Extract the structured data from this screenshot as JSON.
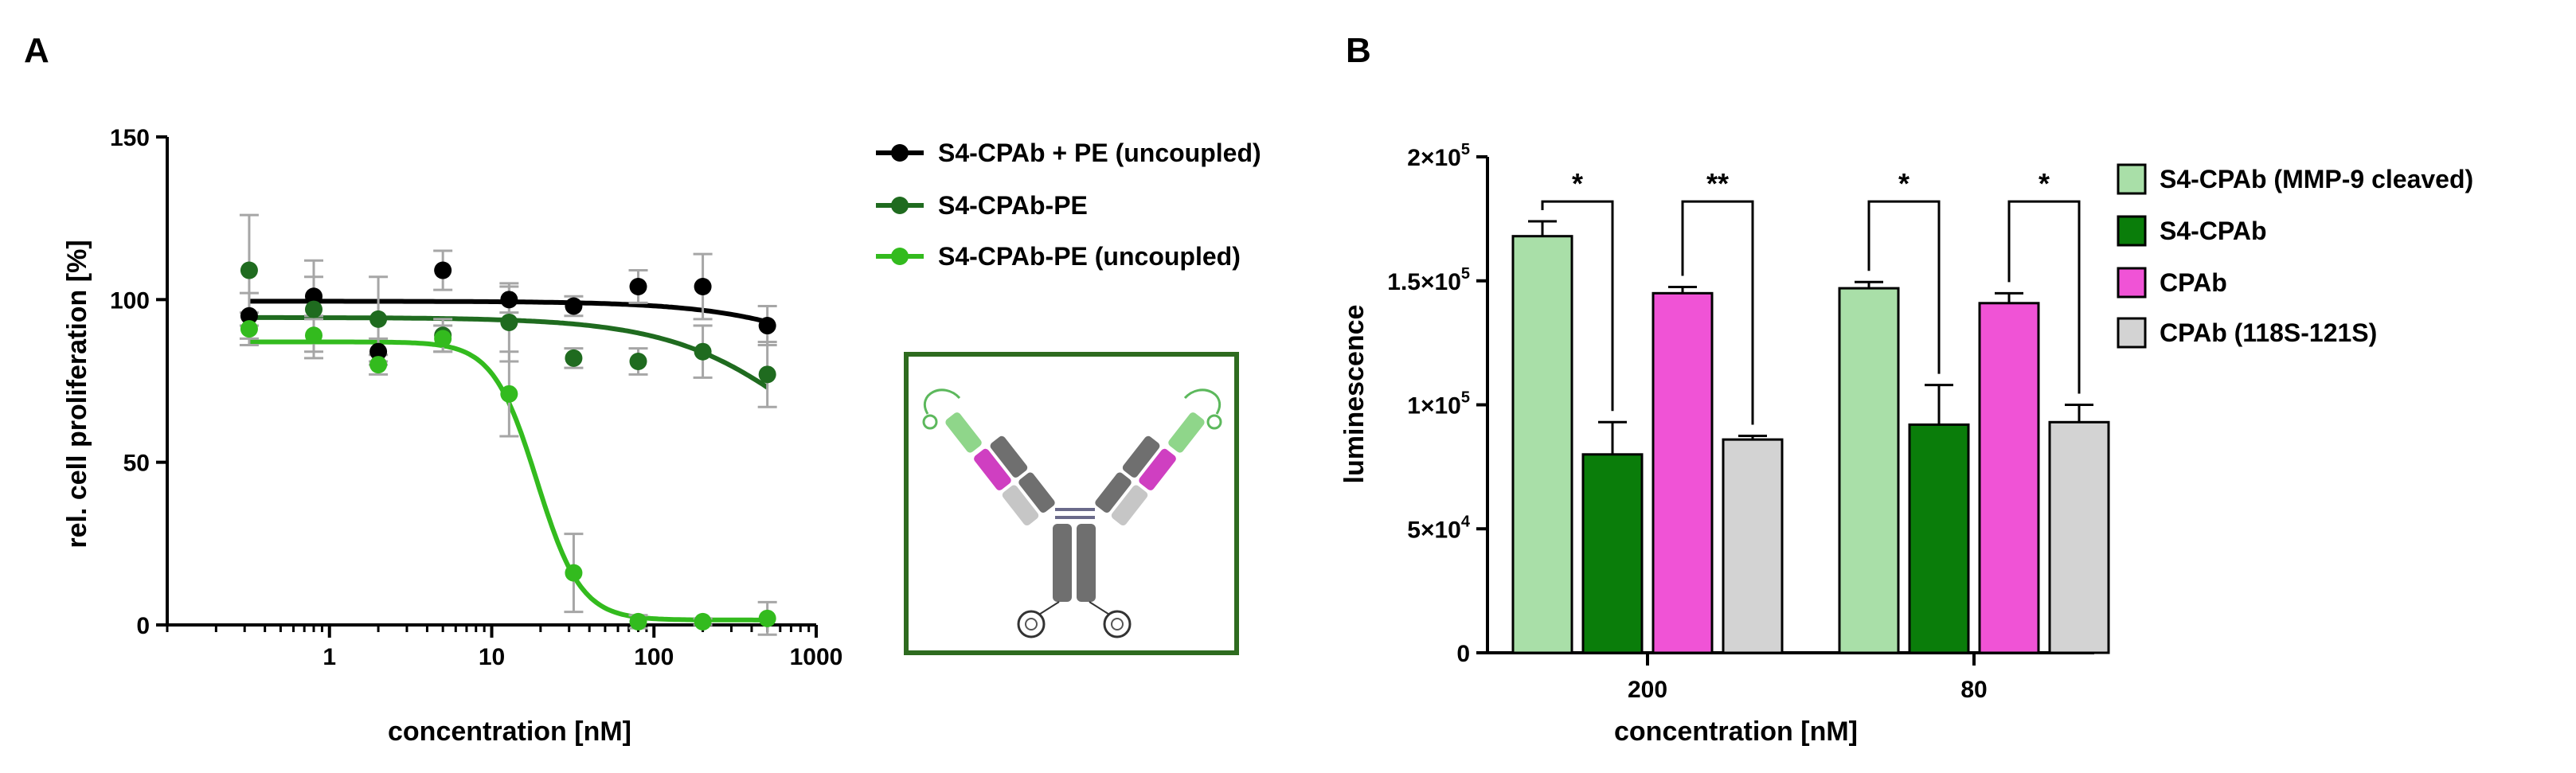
{
  "panels": {
    "a_label": "A",
    "b_label": "B"
  },
  "chart_data": [
    {
      "type": "scatter",
      "panel": "A",
      "xlabel": "concentration [nM]",
      "ylabel": "rel. cell proliferation [%]",
      "xscale": "log",
      "xlim": [
        0.1,
        1000
      ],
      "ylim": [
        0,
        150
      ],
      "xticks": [
        1,
        10,
        100,
        1000
      ],
      "xtick_labels": [
        "1",
        "10",
        "100",
        "1000"
      ],
      "yticks": [
        0,
        50,
        100,
        150
      ],
      "ytick_labels": [
        "0",
        "50",
        "100",
        "150"
      ],
      "legend_position": "top-right",
      "grid": false,
      "series": [
        {
          "name": "S4-CPAb + PE (uncoupled)",
          "color": "#000000",
          "x": [
            0.32,
            0.8,
            2,
            5,
            12.8,
            32,
            80,
            200,
            500
          ],
          "y": [
            95,
            101,
            84,
            109,
            100,
            98,
            104,
            104,
            92
          ],
          "err": [
            7,
            6,
            4,
            6,
            4,
            3,
            5,
            10,
            6
          ],
          "fit": {
            "top": 99.5,
            "bottom": 55,
            "ec50": 3000,
            "hill": 1
          }
        },
        {
          "name": "S4-CPAb-PE",
          "color": "#1f6b1f",
          "x": [
            0.32,
            0.8,
            2,
            5,
            12.8,
            32,
            80,
            200,
            500
          ],
          "y": [
            109,
            97,
            94,
            89,
            93,
            82,
            81,
            84,
            77
          ],
          "err": [
            17,
            15,
            13,
            5,
            12,
            3,
            4,
            8,
            10
          ],
          "fit": {
            "top": 94.5,
            "bottom": 30,
            "ec50": 1000,
            "hill": 1
          }
        },
        {
          "name": "S4-CPAb-PE (uncoupled)",
          "color": "#33bb1e",
          "x": [
            0.32,
            0.8,
            2,
            5,
            12.8,
            32,
            80,
            200,
            500
          ],
          "y": [
            91,
            89,
            80,
            88,
            71,
            16,
            1,
            1,
            2
          ],
          "err": [
            5,
            5,
            3,
            4,
            13,
            12,
            2,
            1,
            5
          ],
          "fit": {
            "top": 87,
            "bottom": 1.5,
            "ec50": 19,
            "hill": 3.2
          }
        }
      ],
      "inset": {
        "description_icon": "antibody-schematic-icon"
      }
    },
    {
      "type": "bar",
      "panel": "B",
      "xlabel": "concentration [nM]",
      "ylabel": "luminescence",
      "ylim": [
        0,
        200000
      ],
      "yticks": [
        0,
        50000,
        100000,
        150000,
        200000
      ],
      "ytick_labels": [
        {
          "base": "0",
          "exp": ""
        },
        {
          "base": "5×10",
          "exp": "4"
        },
        {
          "base": "1×10",
          "exp": "5"
        },
        {
          "base": "1.5×10",
          "exp": "5"
        },
        {
          "base": "2×10",
          "exp": "5"
        }
      ],
      "categories": [
        "200",
        "80"
      ],
      "legend_position": "right",
      "series": [
        {
          "name": "S4-CPAb (MMP-9 cleaved)",
          "color": "#a9dfa8",
          "values": [
            168000,
            147000
          ],
          "err": [
            6000,
            2500
          ]
        },
        {
          "name": "S4-CPAb",
          "color": "#0a7d0a",
          "values": [
            80000,
            92000
          ],
          "err": [
            13000,
            16000
          ]
        },
        {
          "name": "CPAb",
          "color": "#f053d6",
          "values": [
            145000,
            141000
          ],
          "err": [
            2500,
            4000
          ]
        },
        {
          "name": "CPAb (118S-121S)",
          "color": "#d3d3d3",
          "values": [
            86000,
            93000
          ],
          "err": [
            1500,
            7000
          ]
        }
      ],
      "significance": [
        {
          "category": 0,
          "from": 0,
          "to": 1,
          "label": "*"
        },
        {
          "category": 0,
          "from": 2,
          "to": 3,
          "label": "**"
        },
        {
          "category": 1,
          "from": 0,
          "to": 1,
          "label": "*"
        },
        {
          "category": 1,
          "from": 2,
          "to": 3,
          "label": "*"
        }
      ]
    }
  ]
}
